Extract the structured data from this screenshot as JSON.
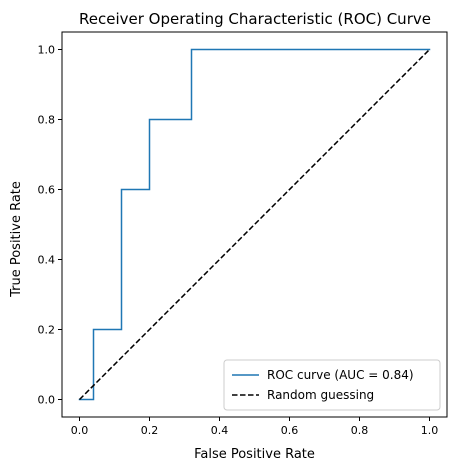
{
  "chart_data": {
    "type": "line",
    "title": "Receiver Operating Characteristic (ROC) Curve",
    "xlabel": "False Positive Rate",
    "ylabel": "True Positive Rate",
    "xlim": [
      -0.05,
      1.05
    ],
    "ylim": [
      -0.05,
      1.05
    ],
    "x_ticks": [
      0.0,
      0.2,
      0.4,
      0.6,
      0.8,
      1.0
    ],
    "y_ticks": [
      0.0,
      0.2,
      0.4,
      0.6,
      0.8,
      1.0
    ],
    "x_tick_labels": [
      "0.0",
      "0.2",
      "0.4",
      "0.6",
      "0.8",
      "1.0"
    ],
    "y_tick_labels": [
      "0.0",
      "0.2",
      "0.4",
      "0.6",
      "0.8",
      "1.0"
    ],
    "grid": false,
    "legend_position": "bottom-right",
    "series": [
      {
        "name": "ROC curve (AUC = 0.84)",
        "color": "#1f77b4",
        "style": "solid",
        "x": [
          0.0,
          0.04,
          0.04,
          0.12,
          0.12,
          0.2,
          0.2,
          0.32,
          0.32,
          1.0
        ],
        "y": [
          0.0,
          0.0,
          0.2,
          0.2,
          0.6,
          0.6,
          0.8,
          0.8,
          1.0,
          1.0
        ]
      },
      {
        "name": "Random guessing",
        "color": "#000000",
        "style": "dashed",
        "x": [
          0.0,
          1.0
        ],
        "y": [
          0.0,
          1.0
        ]
      }
    ]
  }
}
